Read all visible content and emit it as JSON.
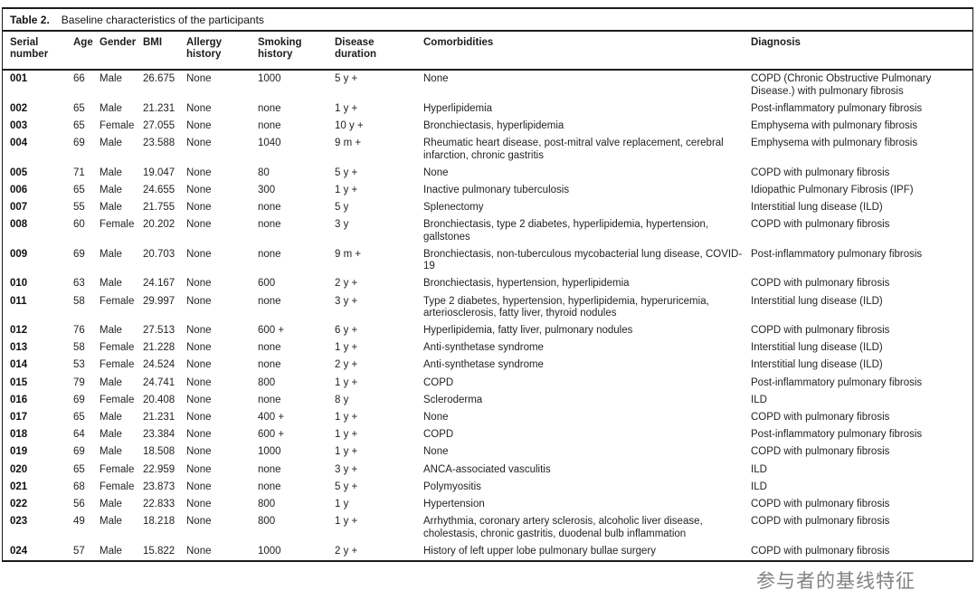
{
  "table": {
    "label": "Table 2.",
    "title": "Baseline characteristics of the participants",
    "column_keys": [
      "serial",
      "age",
      "gender",
      "bmi",
      "allergy",
      "smoking",
      "duration",
      "comorbidities",
      "diagnosis"
    ],
    "columns": [
      "Serial number",
      "Age",
      "Gender",
      "BMI",
      "Allergy history",
      "Smoking history",
      "Disease duration",
      "Comorbidities",
      "Diagnosis"
    ],
    "rows": [
      [
        "001",
        "66",
        "Male",
        "26.675",
        "None",
        "1000",
        "5 y +",
        "None",
        "COPD (Chronic Obstructive Pulmonary Disease.) with pulmonary fibrosis"
      ],
      [
        "002",
        "65",
        "Male",
        "21.231",
        "None",
        "none",
        "1 y +",
        "Hyperlipidemia",
        "Post-inflammatory pulmonary fibrosis"
      ],
      [
        "003",
        "65",
        "Female",
        "27.055",
        "None",
        "none",
        "10 y +",
        "Bronchiectasis, hyperlipidemia",
        "Emphysema with pulmonary fibrosis"
      ],
      [
        "004",
        "69",
        "Male",
        "23.588",
        "None",
        "1040",
        "9 m +",
        "Rheumatic heart disease, post-mitral valve replacement, cerebral infarction, chronic gastritis",
        "Emphysema with pulmonary fibrosis"
      ],
      [
        "005",
        "71",
        "Male",
        "19.047",
        "None",
        "80",
        "5 y +",
        "None",
        "COPD with pulmonary fibrosis"
      ],
      [
        "006",
        "65",
        "Male",
        "24.655",
        "None",
        "300",
        "1 y +",
        "Inactive pulmonary tuberculosis",
        "Idiopathic Pulmonary Fibrosis (IPF)"
      ],
      [
        "007",
        "55",
        "Male",
        "21.755",
        "None",
        "none",
        "5 y",
        "Splenectomy",
        "Interstitial lung disease (ILD)"
      ],
      [
        "008",
        "60",
        "Female",
        "20.202",
        "None",
        "none",
        "3 y",
        "Bronchiectasis, type 2 diabetes, hyperlipidemia, hypertension, gallstones",
        "COPD with pulmonary fibrosis"
      ],
      [
        "009",
        "69",
        "Male",
        "20.703",
        "None",
        "none",
        "9 m +",
        "Bronchiectasis, non-tuberculous mycobacterial lung disease, COVID-19",
        "Post-inflammatory pulmonary fibrosis"
      ],
      [
        "010",
        "63",
        "Male",
        "24.167",
        "None",
        "600",
        "2 y +",
        "Bronchiectasis, hypertension, hyperlipidemia",
        "COPD with pulmonary fibrosis"
      ],
      [
        "011",
        "58",
        "Female",
        "29.997",
        "None",
        "none",
        "3 y +",
        "Type 2 diabetes, hypertension, hyperlipidemia, hyperuricemia, arteriosclerosis, fatty liver, thyroid nodules",
        "Interstitial lung disease (ILD)"
      ],
      [
        "012",
        "76",
        "Male",
        "27.513",
        "None",
        "600 +",
        "6 y +",
        "Hyperlipidemia, fatty liver, pulmonary nodules",
        "COPD with pulmonary fibrosis"
      ],
      [
        "013",
        "58",
        "Female",
        "21.228",
        "None",
        "none",
        "1 y +",
        "Anti-synthetase syndrome",
        "Interstitial lung disease (ILD)"
      ],
      [
        "014",
        "53",
        "Female",
        "24.524",
        "None",
        "none",
        "2 y +",
        "Anti-synthetase syndrome",
        "Interstitial lung disease (ILD)"
      ],
      [
        "015",
        "79",
        "Male",
        "24.741",
        "None",
        "800",
        "1 y +",
        "COPD",
        "Post-inflammatory pulmonary fibrosis"
      ],
      [
        "016",
        "69",
        "Female",
        "20.408",
        "None",
        "none",
        "8 y",
        "Scleroderma",
        "ILD"
      ],
      [
        "017",
        "65",
        "Male",
        "21.231",
        "None",
        "400 +",
        "1 y +",
        "None",
        "COPD with pulmonary fibrosis"
      ],
      [
        "018",
        "64",
        "Male",
        "23.384",
        "None",
        "600 +",
        "1 y +",
        "COPD",
        "Post-inflammatory pulmonary fibrosis"
      ],
      [
        "019",
        "69",
        "Male",
        "18.508",
        "None",
        "1000",
        "1 y +",
        "None",
        "COPD with pulmonary fibrosis"
      ],
      [
        "020",
        "65",
        "Female",
        "22.959",
        "None",
        "none",
        "3 y +",
        "ANCA-associated vasculitis",
        "ILD"
      ],
      [
        "021",
        "68",
        "Female",
        "23.873",
        "None",
        "none",
        "5 y +",
        "Polymyositis",
        "ILD"
      ],
      [
        "022",
        "56",
        "Male",
        "22.833",
        "None",
        "800",
        "1 y",
        "Hypertension",
        "COPD with pulmonary fibrosis"
      ],
      [
        "023",
        "49",
        "Male",
        "18.218",
        "None",
        "800",
        "1 y +",
        "Arrhythmia, coronary artery sclerosis, alcoholic liver disease, cholestasis, chronic gastritis, duodenal bulb inflammation",
        "COPD with pulmonary fibrosis"
      ],
      [
        "024",
        "57",
        "Male",
        "15.822",
        "None",
        "1000",
        "2 y +",
        "History of left upper lobe pulmonary bullae surgery",
        "COPD with pulmonary fibrosis"
      ]
    ]
  },
  "caption": "参与者的基线特征",
  "colors": {
    "border": "#1b1b1b",
    "text": "#232323",
    "caption_gray": "#828282",
    "background": "#ffffff"
  }
}
